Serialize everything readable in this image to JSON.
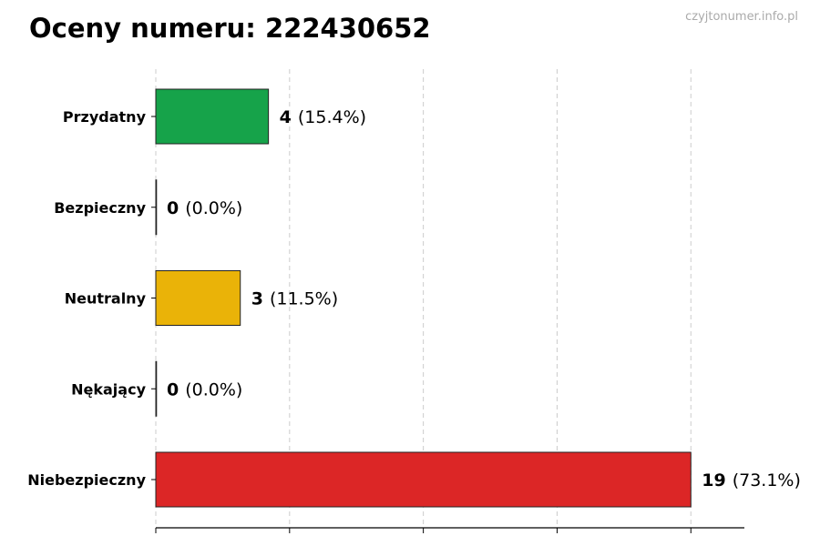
{
  "chart_data": {
    "type": "bar",
    "orientation": "horizontal",
    "title": "Oceny numeru: 222430652",
    "watermark": "czyjtonumer.info.pl",
    "categories": [
      "Przydatny",
      "Bezpieczny",
      "Neutralny",
      "Nękający",
      "Niebezpieczny"
    ],
    "values": [
      4,
      0,
      3,
      0,
      19
    ],
    "percent_labels": [
      "(15.4%)",
      "(0.0%)",
      "(11.5%)",
      "(0.0%)",
      "(73.1%)"
    ],
    "colors": [
      "#16a34a",
      "#16a34a",
      "#eab308",
      "#dc2626",
      "#dc2626"
    ],
    "xlim": [
      0,
      20.9
    ],
    "xticks": [
      0,
      4.75,
      9.5,
      14.25,
      19
    ],
    "xtick_labels_shown": false,
    "grid": "vertical-dashed",
    "xlabel": "",
    "ylabel": ""
  }
}
